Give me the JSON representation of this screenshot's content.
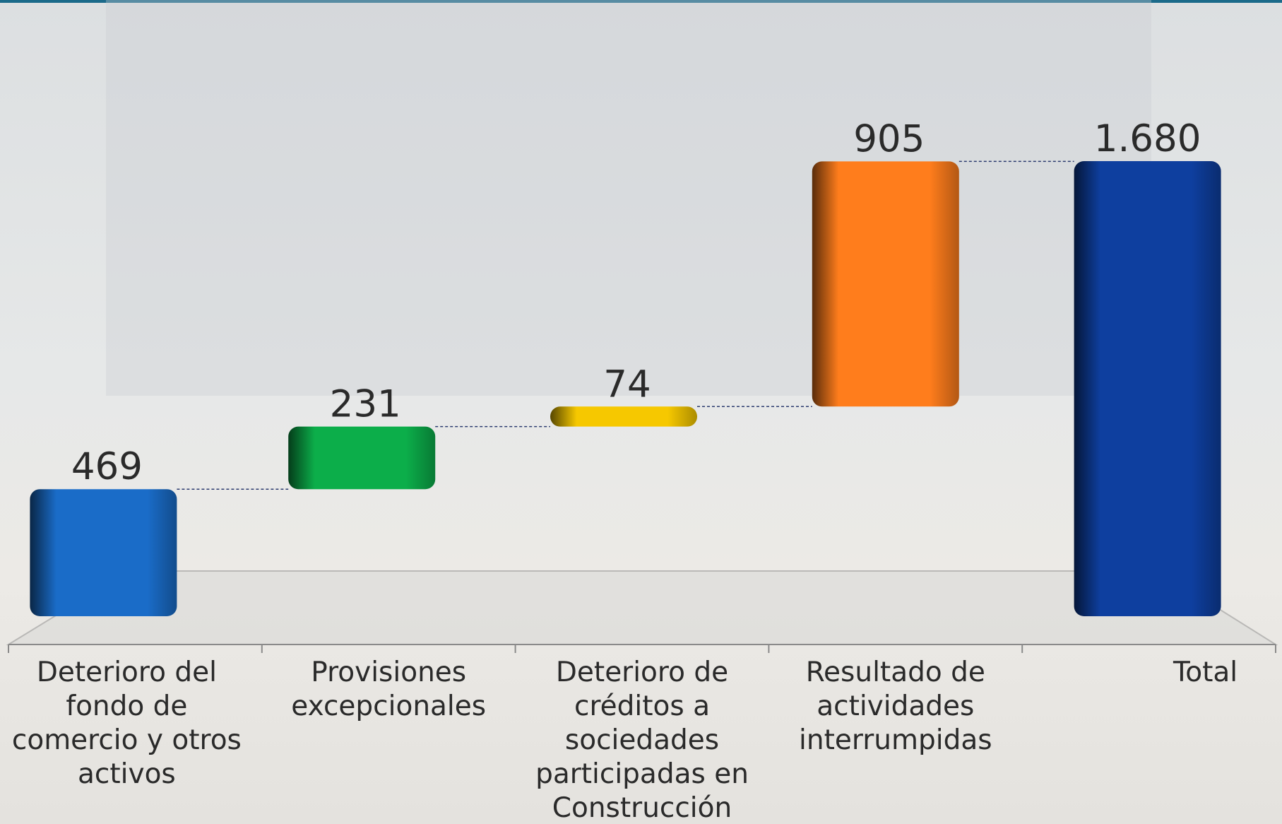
{
  "chart_data": {
    "type": "waterfall",
    "categories": [
      "Deterioro del fondo de comercio y otros activos",
      "Provisiones excepcionales",
      "Deterioro de créditos a sociedades participadas en Construcción",
      "Resultado de actividades interrumpidas",
      "Total"
    ],
    "values": [
      469,
      231,
      74,
      905,
      1680
    ],
    "value_labels": [
      "469",
      "231",
      "74",
      "905",
      "1.680"
    ],
    "colors": [
      "#1a6cc8",
      "#0cae4a",
      "#f6c800",
      "#ff7d1c",
      "#0e3f9f"
    ]
  }
}
